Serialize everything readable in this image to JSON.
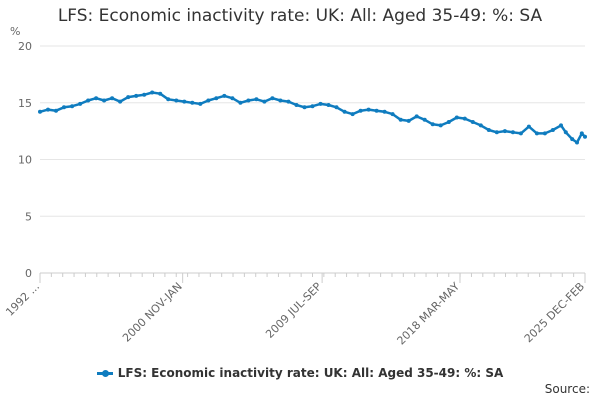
{
  "chart_data": {
    "type": "line",
    "title": "LFS: Economic inactivity rate: UK: All: Aged 35-49: %: SA",
    "ylabel": "%",
    "xlabel": "",
    "ylim": [
      0,
      20
    ],
    "yticks": [
      0,
      5,
      10,
      15,
      20
    ],
    "grid": true,
    "legend_position": "bottom",
    "x_start": 1992.0,
    "x_end": 2026.0,
    "xtick_labels": [
      {
        "x": 1992.0,
        "label": "1992 ..."
      },
      {
        "x": 2000.9,
        "label": "2000 NOV-JAN"
      },
      {
        "x": 2009.6,
        "label": "2009 JUL-SEP"
      },
      {
        "x": 2018.2,
        "label": "2018 MAR-MAY"
      },
      {
        "x": 2026.0,
        "label": "2025 DEC-FEB"
      }
    ],
    "series": [
      {
        "name": "LFS: Economic inactivity rate: UK: All: Aged 35-49: %: SA",
        "color": "#0f7cbf",
        "points": [
          [
            1992.0,
            14.2
          ],
          [
            1992.5,
            14.4
          ],
          [
            1993.0,
            14.3
          ],
          [
            1993.5,
            14.6
          ],
          [
            1994.0,
            14.7
          ],
          [
            1994.5,
            14.9
          ],
          [
            1995.0,
            15.2
          ],
          [
            1995.5,
            15.4
          ],
          [
            1996.0,
            15.2
          ],
          [
            1996.5,
            15.4
          ],
          [
            1997.0,
            15.1
          ],
          [
            1997.5,
            15.5
          ],
          [
            1998.0,
            15.6
          ],
          [
            1998.5,
            15.7
          ],
          [
            1999.0,
            15.9
          ],
          [
            1999.5,
            15.8
          ],
          [
            2000.0,
            15.3
          ],
          [
            2000.5,
            15.2
          ],
          [
            2001.0,
            15.1
          ],
          [
            2001.5,
            15.0
          ],
          [
            2002.0,
            14.9
          ],
          [
            2002.5,
            15.2
          ],
          [
            2003.0,
            15.4
          ],
          [
            2003.5,
            15.6
          ],
          [
            2004.0,
            15.4
          ],
          [
            2004.5,
            15.0
          ],
          [
            2005.0,
            15.2
          ],
          [
            2005.5,
            15.3
          ],
          [
            2006.0,
            15.1
          ],
          [
            2006.5,
            15.4
          ],
          [
            2007.0,
            15.2
          ],
          [
            2007.5,
            15.1
          ],
          [
            2008.0,
            14.8
          ],
          [
            2008.5,
            14.6
          ],
          [
            2009.0,
            14.7
          ],
          [
            2009.5,
            14.9
          ],
          [
            2010.0,
            14.8
          ],
          [
            2010.5,
            14.6
          ],
          [
            2011.0,
            14.2
          ],
          [
            2011.5,
            14.0
          ],
          [
            2012.0,
            14.3
          ],
          [
            2012.5,
            14.4
          ],
          [
            2013.0,
            14.3
          ],
          [
            2013.5,
            14.2
          ],
          [
            2014.0,
            14.0
          ],
          [
            2014.5,
            13.5
          ],
          [
            2015.0,
            13.4
          ],
          [
            2015.5,
            13.8
          ],
          [
            2016.0,
            13.5
          ],
          [
            2016.5,
            13.1
          ],
          [
            2017.0,
            13.0
          ],
          [
            2017.5,
            13.3
          ],
          [
            2018.0,
            13.7
          ],
          [
            2018.5,
            13.6
          ],
          [
            2019.0,
            13.3
          ],
          [
            2019.5,
            13.0
          ],
          [
            2020.0,
            12.6
          ],
          [
            2020.5,
            12.4
          ],
          [
            2021.0,
            12.5
          ],
          [
            2021.5,
            12.4
          ],
          [
            2022.0,
            12.3
          ],
          [
            2022.5,
            12.9
          ],
          [
            2023.0,
            12.3
          ],
          [
            2023.5,
            12.3
          ],
          [
            2024.0,
            12.6
          ],
          [
            2024.5,
            13.0
          ],
          [
            2024.8,
            12.4
          ],
          [
            2025.2,
            11.8
          ],
          [
            2025.5,
            11.5
          ],
          [
            2025.8,
            12.3
          ],
          [
            2026.0,
            12.0
          ]
        ]
      }
    ]
  },
  "source_label": "Source:"
}
